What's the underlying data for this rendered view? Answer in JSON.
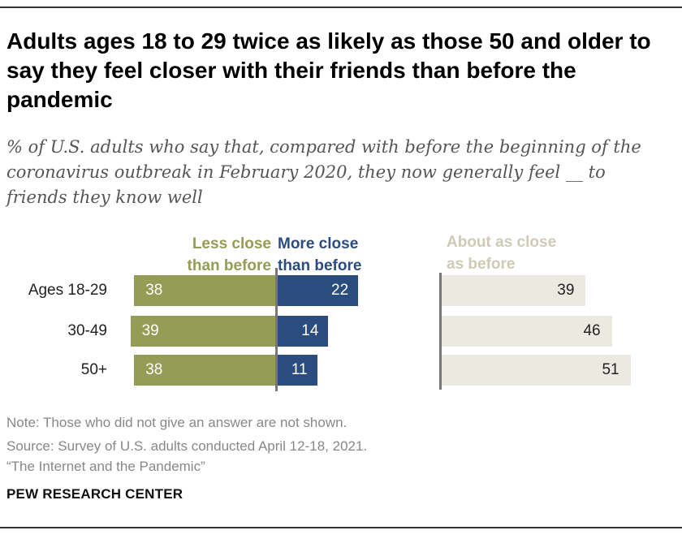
{
  "header": {
    "title": "Adults ages 18 to 29 twice as likely as those 50 and older to say they feel closer with their friends than before the pandemic",
    "subtitle": "% of U.S. adults who say that, compared with before the beginning of the coronavirus outbreak in February 2020, they now generally feel __ to friends they know well"
  },
  "legend": {
    "less_line1": "Less close",
    "less_line2": "than before",
    "more_line1": "More close",
    "more_line2": "than before",
    "same_line1": "About as close",
    "same_line2": "as before"
  },
  "colors": {
    "less": "#949c55",
    "more": "#2b4c7e",
    "same": "#ece9e1"
  },
  "chart_data": {
    "type": "bar",
    "title": "Adults ages 18 to 29 twice as likely as those 50 and older to say they feel closer with their friends than before the pandemic",
    "categories": [
      "Ages 18-29",
      "30-49",
      "50+"
    ],
    "series": [
      {
        "name": "Less close than before",
        "values": [
          38,
          39,
          38
        ]
      },
      {
        "name": "More close than before",
        "values": [
          22,
          14,
          11
        ]
      },
      {
        "name": "About as close as before",
        "values": [
          39,
          46,
          51
        ]
      }
    ],
    "xlabel": "",
    "ylabel": ""
  },
  "footer": {
    "note": "Note: Those who did not give an answer are not shown.",
    "source": "Source: Survey of U.S. adults conducted April 12-18, 2021.",
    "report": "“The Internet and the Pandemic”",
    "brand": "PEW RESEARCH CENTER"
  }
}
